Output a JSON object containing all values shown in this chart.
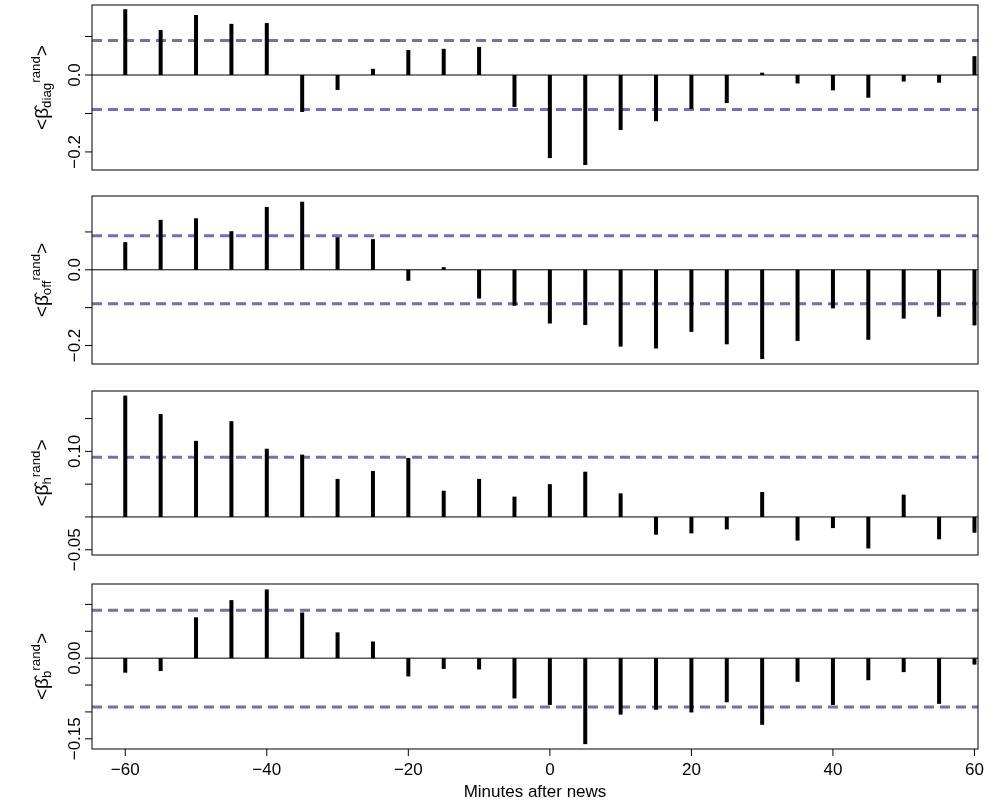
{
  "chart_data": [
    {
      "type": "bar",
      "ylabel": "<β̂$_{diag}$$^{rand}$>",
      "x": [
        -60,
        -55,
        -50,
        -45,
        -40,
        -35,
        -30,
        -25,
        -20,
        -15,
        -10,
        -5,
        0,
        5,
        10,
        15,
        20,
        25,
        30,
        35,
        40,
        45,
        50,
        55,
        60
      ],
      "values": [
        0.171,
        0.117,
        0.156,
        0.133,
        0.135,
        -0.096,
        -0.039,
        0.016,
        0.065,
        0.068,
        0.073,
        -0.083,
        -0.216,
        -0.234,
        -0.143,
        -0.12,
        -0.088,
        -0.073,
        0.006,
        -0.022,
        -0.04,
        -0.059,
        -0.017,
        -0.02,
        0.049
      ],
      "color": "#000000",
      "xlim": [
        -64.7,
        60.5
      ],
      "ylim": [
        -0.247,
        0.182
      ],
      "yticks": [
        {
          "value": -0.2,
          "label": "−0.2"
        },
        {
          "value": -0.1,
          "label": null
        },
        {
          "value": 0,
          "label": "0.0"
        },
        {
          "value": 0.1,
          "label": null
        }
      ],
      "tick_labels": "y",
      "ref_lines": [
        {
          "axis": "y",
          "value": 0.09,
          "color": "#7570b3",
          "line_style": "dashed"
        },
        {
          "axis": "y",
          "value": -0.09,
          "color": "#7570b3",
          "line_style": "dashed"
        }
      ]
    },
    {
      "type": "bar",
      "ylabel": "<β̂$_{off}$$^{rand}$>",
      "x": [
        -60,
        -55,
        -50,
        -45,
        -40,
        -35,
        -30,
        -25,
        -20,
        -15,
        -10,
        -5,
        0,
        5,
        10,
        15,
        20,
        25,
        30,
        35,
        40,
        45,
        50,
        55,
        60
      ],
      "values": [
        0.073,
        0.132,
        0.136,
        0.102,
        0.166,
        0.18,
        0.086,
        0.081,
        -0.029,
        0.007,
        -0.076,
        -0.095,
        -0.142,
        -0.146,
        -0.203,
        -0.208,
        -0.164,
        -0.197,
        -0.236,
        -0.188,
        -0.102,
        -0.185,
        -0.129,
        -0.124,
        -0.147
      ],
      "color": "#000000",
      "xlim": [
        -64.7,
        60.5
      ],
      "ylim": [
        -0.249,
        0.195
      ],
      "yticks": [
        {
          "value": -0.2,
          "label": "−0.2"
        },
        {
          "value": -0.1,
          "label": null
        },
        {
          "value": 0,
          "label": "0.0"
        },
        {
          "value": 0.1,
          "label": null
        }
      ],
      "tick_labels": "y",
      "ref_lines": [
        {
          "axis": "y",
          "value": 0.09,
          "color": "#7570b3",
          "line_style": "dashed"
        },
        {
          "axis": "y",
          "value": -0.09,
          "color": "#7570b3",
          "line_style": "dashed"
        }
      ]
    },
    {
      "type": "bar",
      "ylabel": "<β̂$_{h}$$^{rand}$>",
      "x": [
        -60,
        -55,
        -50,
        -45,
        -40,
        -35,
        -30,
        -25,
        -20,
        -15,
        -10,
        -5,
        0,
        5,
        10,
        15,
        20,
        25,
        30,
        35,
        40,
        45,
        50,
        55,
        60
      ],
      "values": [
        0.185,
        0.157,
        0.116,
        0.146,
        0.104,
        0.095,
        0.058,
        0.07,
        0.09,
        0.04,
        0.058,
        0.031,
        0.05,
        0.069,
        0.036,
        -0.027,
        -0.025,
        -0.019,
        0.038,
        -0.036,
        -0.017,
        -0.048,
        0.034,
        -0.034,
        -0.024
      ],
      "color": "#000000",
      "xlim": [
        -64.7,
        60.5
      ],
      "ylim": [
        -0.058,
        0.192
      ],
      "yticks": [
        {
          "value": -0.05,
          "label": "−0.05"
        },
        {
          "value": 0,
          "label": null
        },
        {
          "value": 0.05,
          "label": null
        },
        {
          "value": 0.1,
          "label": "0.10"
        },
        {
          "value": 0.15,
          "label": null
        }
      ],
      "tick_labels": "y",
      "ref_lines": [
        {
          "axis": "y",
          "value": 0.091,
          "color": "#7570b3",
          "line_style": "dashed"
        }
      ]
    },
    {
      "type": "bar",
      "xlabel": "Minutes after news",
      "ylabel": "<β̂$_{b}$$^{rand}$>",
      "x": [
        -60,
        -55,
        -50,
        -45,
        -40,
        -35,
        -30,
        -25,
        -20,
        -15,
        -10,
        -5,
        0,
        5,
        10,
        15,
        20,
        25,
        30,
        35,
        40,
        45,
        50,
        55,
        60
      ],
      "values": [
        -0.027,
        -0.024,
        0.076,
        0.108,
        0.128,
        0.085,
        0.048,
        0.031,
        -0.034,
        -0.02,
        -0.021,
        -0.075,
        -0.087,
        -0.16,
        -0.105,
        -0.096,
        -0.101,
        -0.082,
        -0.124,
        -0.044,
        -0.087,
        -0.041,
        -0.026,
        -0.085,
        -0.012
      ],
      "color": "#000000",
      "xlim": [
        -64.7,
        60.5
      ],
      "xticks": [
        {
          "value": -60,
          "label": "−60"
        },
        {
          "value": -40,
          "label": "−40"
        },
        {
          "value": -20,
          "label": "−20"
        },
        0,
        20,
        40,
        60
      ],
      "ylim": [
        -0.169,
        0.138
      ],
      "yticks": [
        {
          "value": -0.15,
          "label": "−0.15"
        },
        {
          "value": -0.1,
          "label": null
        },
        {
          "value": -0.05,
          "label": null
        },
        {
          "value": 0,
          "label": "0.00"
        },
        {
          "value": 0.05,
          "label": null
        },
        {
          "value": 0.1,
          "label": null
        }
      ],
      "ref_lines": [
        {
          "axis": "y",
          "value": 0.089,
          "color": "#7570b3",
          "line_style": "dashed"
        },
        {
          "axis": "y",
          "value": -0.091,
          "color": "#7570b3",
          "line_style": "dashed"
        }
      ]
    }
  ]
}
